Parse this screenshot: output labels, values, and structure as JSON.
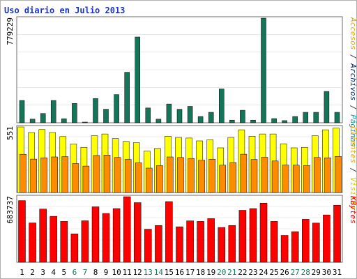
{
  "chart_data": {
    "type": "bar",
    "title": "Uso diario en Julio 2013",
    "days": [
      "1",
      "2",
      "3",
      "4",
      "5",
      "6",
      "7",
      "8",
      "9",
      "10",
      "11",
      "12",
      "13",
      "14",
      "15",
      "16",
      "17",
      "18",
      "19",
      "20",
      "21",
      "22",
      "23",
      "24",
      "25",
      "26",
      "27",
      "28",
      "29",
      "30",
      "31"
    ],
    "weekend_days": [
      "6",
      "7",
      "13",
      "14",
      "20",
      "21",
      "27",
      "28"
    ],
    "panels": [
      {
        "name": "archivos-paginas",
        "ymax_label": "779229",
        "ylim": [
          0,
          779229
        ],
        "right_label_parts": [
          {
            "text": "Accesos",
            "color": "#f3a400"
          },
          {
            "text": " / ",
            "color": "#333333"
          },
          {
            "text": "Archivos",
            "color": "#0b2c7a"
          },
          {
            "text": " / ",
            "color": "#333333"
          },
          {
            "text": "Páginas",
            "color": "#1c9aa7"
          }
        ],
        "series": [
          {
            "name": "Archivos",
            "color": "#157558",
            "values": [
              166000,
              27000,
              69000,
              166000,
              30000,
              144000,
              4000,
              181000,
              101000,
              210000,
              376000,
              639000,
              110000,
              27000,
              140000,
              101000,
              122000,
              47000,
              78000,
              252000,
              20000,
              93000,
              20000,
              779229,
              31000,
              16000,
              47000,
              78000,
              78000,
              233000,
              78000
            ]
          }
        ]
      },
      {
        "name": "visitas-clientes",
        "ymax_label": "551",
        "ylim": [
          0,
          551
        ],
        "right_label_parts": [
          {
            "text": "Clientes",
            "color": "#f3a400"
          },
          {
            "text": " / ",
            "color": "#333333"
          },
          {
            "text": "Visitas",
            "color": "#d8cc00"
          }
        ],
        "series": [
          {
            "name": "Visitas",
            "color": "#ffff00",
            "values": [
              551,
              504,
              529,
              504,
              470,
              408,
              380,
              478,
              492,
              453,
              429,
              419,
              349,
              370,
              473,
              463,
              458,
              434,
              444,
              375,
              463,
              527,
              473,
              492,
              492,
              410,
              375,
              380,
              478,
              527,
              541
            ]
          },
          {
            "name": "Clientes",
            "color": "#ff8c00",
            "values": [
              321,
              281,
              292,
              299,
              302,
              243,
              222,
              311,
              315,
              295,
              278,
              251,
              205,
              227,
              299,
              294,
              286,
              272,
              280,
              230,
              252,
              322,
              277,
              296,
              265,
              231,
              230,
              227,
              294,
              292,
              303
            ]
          }
        ]
      },
      {
        "name": "kbytes",
        "ymax_label": "683737",
        "ylim": [
          0,
          683737
        ],
        "right_label_parts": [
          {
            "text": "KBytes",
            "color": "#e00000"
          }
        ],
        "series": [
          {
            "name": "KBytes",
            "color": "#ff0000",
            "values": [
              643000,
              410000,
              555000,
              479000,
              426000,
              296000,
              433000,
              578000,
              509000,
              560000,
              683737,
              622000,
              345000,
              384000,
              633000,
              370000,
              432000,
              426000,
              455000,
              363000,
              384000,
              542000,
              560000,
              616000,
              426000,
              280000,
              319000,
              448000,
              409000,
              494000,
              595000
            ]
          }
        ]
      }
    ]
  }
}
